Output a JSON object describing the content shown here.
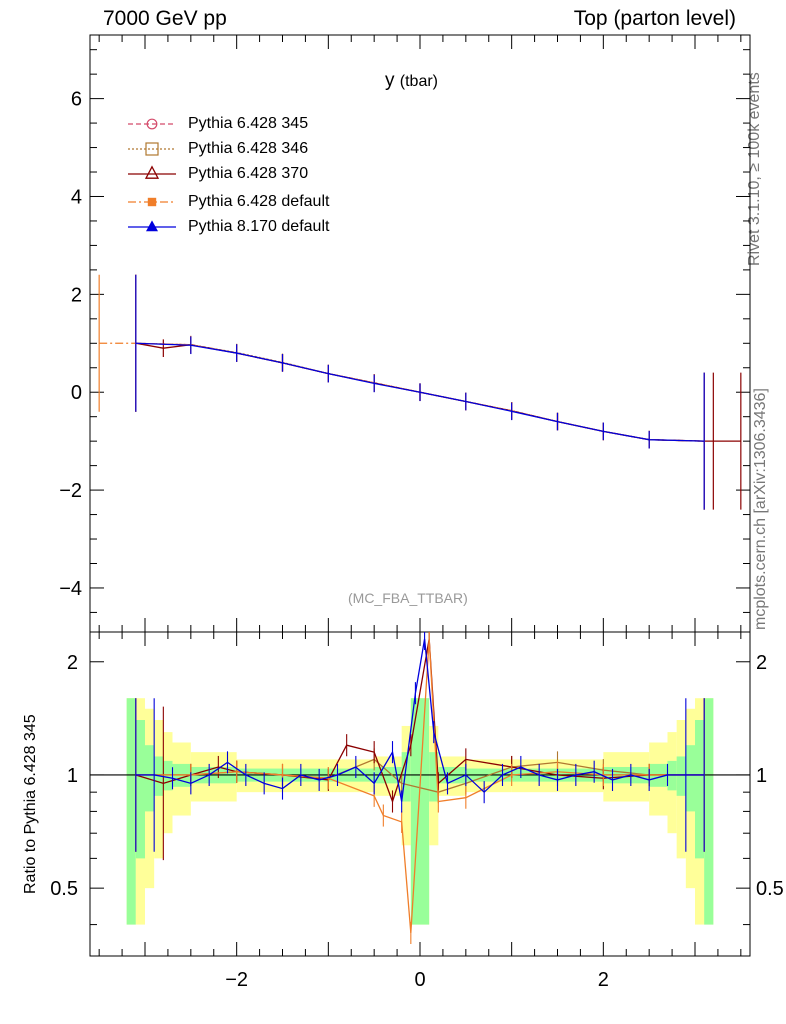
{
  "header": {
    "energy": "7000 GeV pp",
    "process": "Top (parton level)"
  },
  "side_text": {
    "rivet": "Rivet 3.1.10, ≥ 100k events",
    "mcplots": "mcplots.cern.ch [arXiv:1306.3436]"
  },
  "chart_data": [
    {
      "type": "line",
      "title": "y",
      "title_suffix": "(tbar)",
      "analysis": "(MC_FBA_TTBAR)",
      "xlim": [
        -3.6,
        3.6
      ],
      "ylim": [
        -4.9,
        7.3
      ],
      "yticks": [
        -4,
        -2,
        0,
        2,
        4,
        6
      ],
      "ytick_labels": [
        "−4",
        "−2",
        "0",
        "2",
        "4",
        "6"
      ],
      "series": [
        {
          "name": "Pythia 6.428 345",
          "color": "#d44b6b",
          "marker": "circle-open",
          "dash": "5,3",
          "x": [
            -3.1,
            -2.5,
            -2.0,
            -1.5,
            -1.0,
            -0.5,
            0.0,
            0.5,
            1.0,
            1.5,
            2.0,
            2.5,
            3.1
          ],
          "y": [
            1.0,
            0.97,
            0.8,
            0.6,
            0.38,
            0.19,
            0.0,
            -0.19,
            -0.38,
            -0.6,
            -0.8,
            -0.97,
            -1.0
          ]
        },
        {
          "name": "Pythia 6.428 346",
          "color": "#b07830",
          "marker": "square-open",
          "dash": "2,2",
          "x": [
            -3.1,
            -2.5,
            -2.0,
            -1.5,
            -1.0,
            -0.5,
            0.0,
            0.5,
            1.0,
            1.5,
            2.0,
            2.5,
            3.1
          ],
          "y": [
            1.0,
            0.97,
            0.81,
            0.61,
            0.38,
            0.19,
            0.0,
            -0.19,
            -0.38,
            -0.6,
            -0.8,
            -0.97,
            -1.0
          ]
        },
        {
          "name": "Pythia 6.428 370",
          "color": "#8b0000",
          "marker": "triangle-open",
          "dash": "",
          "x": [
            -3.1,
            -2.8,
            -2.5,
            -2.0,
            -1.5,
            -1.0,
            -0.5,
            0.0,
            0.5,
            1.0,
            1.5,
            2.0,
            2.5,
            3.1,
            3.2,
            3.5
          ],
          "y": [
            1.0,
            0.9,
            0.97,
            0.8,
            0.6,
            0.38,
            0.19,
            0.0,
            -0.19,
            -0.38,
            -0.6,
            -0.8,
            -0.97,
            -1.0,
            -1.0,
            -1.0
          ]
        },
        {
          "name": "Pythia 6.428 default",
          "color": "#f07e2a",
          "marker": "square-filled",
          "dash": "8,3,2,3",
          "x": [
            -3.5,
            -3.1,
            -2.5,
            -2.0,
            -1.5,
            -1.0,
            -0.5,
            0.0,
            0.5,
            1.0,
            1.5,
            2.0,
            2.5,
            3.1
          ],
          "y": [
            1.0,
            1.0,
            0.97,
            0.8,
            0.6,
            0.38,
            0.19,
            0.0,
            -0.19,
            -0.38,
            -0.6,
            -0.8,
            -0.97,
            -1.0
          ]
        },
        {
          "name": "Pythia 8.170 default",
          "color": "#0000dd",
          "marker": "triangle-filled",
          "dash": "",
          "x": [
            -3.1,
            -2.5,
            -2.0,
            -1.5,
            -1.0,
            -0.5,
            0.0,
            0.5,
            1.0,
            1.5,
            2.0,
            2.5,
            3.1
          ],
          "y": [
            1.0,
            0.96,
            0.8,
            0.6,
            0.38,
            0.18,
            0.0,
            -0.19,
            -0.39,
            -0.6,
            -0.8,
            -0.97,
            -1.0
          ]
        }
      ]
    },
    {
      "type": "line",
      "ylabel": "Ratio to Pythia 6.428 345",
      "xlim": [
        -3.6,
        3.6
      ],
      "ylim": [
        0.33,
        2.4
      ],
      "yscale": "log",
      "yticks": [
        0.5,
        1,
        2
      ],
      "ytick_labels": [
        "0.5",
        "1",
        "2"
      ],
      "xticks": [
        -2,
        0,
        2
      ],
      "xtick_labels": [
        "−2",
        "0",
        "2"
      ],
      "reference": 1.0,
      "band_edges": [
        -3.2,
        -3.1,
        -3.0,
        -2.9,
        -2.8,
        -2.7,
        -2.5,
        -2.0,
        -1.0,
        -0.5,
        -0.2,
        -0.1,
        0.0,
        0.1,
        0.2,
        0.5,
        1.0,
        2.0,
        2.5,
        2.7,
        2.8,
        2.9,
        3.0,
        3.1,
        3.2
      ],
      "band_yellow_half": [
        0.6,
        0.6,
        0.5,
        0.4,
        0.3,
        0.22,
        0.15,
        0.1,
        0.1,
        0.12,
        0.35,
        0.6,
        0.6,
        0.35,
        0.12,
        0.1,
        0.1,
        0.15,
        0.22,
        0.3,
        0.4,
        0.5,
        0.6,
        0.6
      ],
      "band_green_half": [
        0.6,
        0.4,
        0.2,
        0.12,
        0.09,
        0.07,
        0.05,
        0.04,
        0.04,
        0.05,
        0.15,
        0.6,
        0.6,
        0.15,
        0.05,
        0.04,
        0.04,
        0.05,
        0.07,
        0.09,
        0.12,
        0.2,
        0.4,
        0.6
      ],
      "series": [
        {
          "name": "Pythia 6.428 346",
          "color": "#b07830",
          "x": [
            -2.5,
            -2.0,
            -1.5,
            -1.0,
            -0.5,
            -0.2,
            0.2,
            0.5,
            1.0,
            1.5,
            2.0,
            2.5
          ],
          "y": [
            1.0,
            1.02,
            1.0,
            0.98,
            1.1,
            0.95,
            0.9,
            0.95,
            1.05,
            1.08,
            1.03,
            1.0
          ]
        },
        {
          "name": "Pythia 6.428 370",
          "color": "#8b0000",
          "x": [
            -3.1,
            -2.8,
            -2.5,
            -2.2,
            -2.0,
            -1.5,
            -1.0,
            -0.8,
            -0.5,
            -0.3,
            -0.1,
            0.1,
            0.2,
            0.5,
            1.0,
            1.5,
            2.0,
            2.5,
            3.1
          ],
          "y": [
            1.0,
            0.95,
            1.0,
            1.05,
            1.02,
            1.0,
            0.97,
            1.2,
            1.15,
            0.85,
            1.2,
            2.3,
            0.95,
            1.1,
            1.05,
            1.0,
            0.98,
            1.0,
            1.0
          ]
        },
        {
          "name": "Pythia 6.428 default",
          "color": "#f07e2a",
          "x": [
            -3.1,
            -2.5,
            -2.0,
            -1.5,
            -1.0,
            -0.5,
            -0.4,
            -0.2,
            -0.1,
            0.1,
            0.2,
            0.5,
            1.0,
            1.5,
            2.0,
            2.5,
            3.1
          ],
          "y": [
            1.0,
            1.0,
            1.02,
            1.0,
            0.98,
            0.88,
            0.78,
            0.75,
            0.38,
            2.3,
            0.85,
            0.87,
            1.0,
            1.02,
            1.0,
            1.0,
            1.0
          ]
        },
        {
          "name": "Pythia 8.170 default",
          "color": "#0000dd",
          "x": [
            -3.1,
            -2.9,
            -2.7,
            -2.5,
            -2.3,
            -2.1,
            -1.9,
            -1.7,
            -1.5,
            -1.3,
            -1.1,
            -0.9,
            -0.7,
            -0.5,
            -0.3,
            -0.2,
            -0.05,
            0.05,
            0.15,
            0.3,
            0.5,
            0.7,
            0.9,
            1.1,
            1.3,
            1.5,
            1.7,
            1.9,
            2.1,
            2.3,
            2.5,
            2.7,
            2.9,
            3.1
          ],
          "y": [
            1.0,
            1.0,
            0.98,
            0.95,
            1.0,
            1.08,
            1.0,
            0.95,
            0.92,
            1.0,
            0.97,
            1.0,
            1.05,
            0.95,
            1.15,
            0.85,
            1.65,
            2.3,
            1.3,
            0.95,
            1.0,
            0.9,
            1.0,
            1.05,
            1.0,
            0.97,
            1.0,
            1.02,
            0.97,
            1.0,
            0.97,
            1.0,
            1.0,
            1.0
          ]
        }
      ]
    }
  ]
}
